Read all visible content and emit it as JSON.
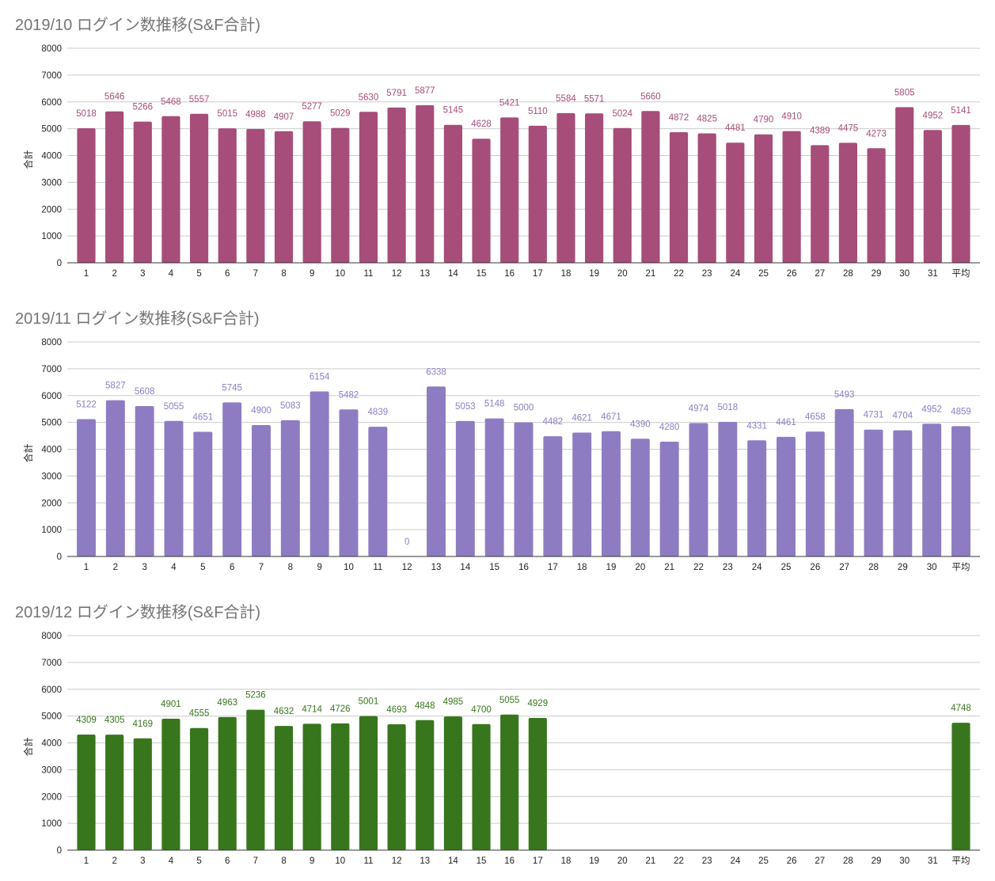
{
  "chart_data": [
    {
      "type": "bar",
      "title": "2019/10 ログイン数推移(S&F合計)",
      "ylabel": "合計",
      "xlabel": "",
      "ylim": [
        0,
        8000
      ],
      "yticks": [
        0,
        1000,
        2000,
        3000,
        4000,
        5000,
        6000,
        7000,
        8000
      ],
      "grid": true,
      "color": "#a64d79",
      "label_color": "#a64d79",
      "categories": [
        "1",
        "2",
        "3",
        "4",
        "5",
        "6",
        "7",
        "8",
        "9",
        "10",
        "11",
        "12",
        "13",
        "14",
        "15",
        "16",
        "17",
        "18",
        "19",
        "20",
        "21",
        "22",
        "23",
        "24",
        "25",
        "26",
        "27",
        "28",
        "29",
        "30",
        "31",
        "平均"
      ],
      "values": [
        5018,
        5646,
        5266,
        5468,
        5557,
        5015,
        4988,
        4907,
        5277,
        5029,
        5630,
        5791,
        5877,
        5145,
        4628,
        5421,
        5110,
        5584,
        5571,
        5024,
        5660,
        4872,
        4825,
        4481,
        4790,
        4910,
        4389,
        4475,
        4273,
        5805,
        4952,
        5141
      ]
    },
    {
      "type": "bar",
      "title": "2019/11 ログイン数推移(S&F合計)",
      "ylabel": "合計",
      "xlabel": "",
      "ylim": [
        0,
        8000
      ],
      "yticks": [
        0,
        1000,
        2000,
        3000,
        4000,
        5000,
        6000,
        7000,
        8000
      ],
      "grid": true,
      "color": "#8e7cc3",
      "label_color": "#8e7cc3",
      "categories": [
        "1",
        "2",
        "3",
        "4",
        "5",
        "6",
        "7",
        "8",
        "9",
        "10",
        "11",
        "12",
        "13",
        "14",
        "15",
        "16",
        "17",
        "18",
        "19",
        "20",
        "21",
        "22",
        "23",
        "24",
        "25",
        "26",
        "27",
        "28",
        "29",
        "30",
        "平均"
      ],
      "values": [
        5122,
        5827,
        5608,
        5055,
        4651,
        5745,
        4900,
        5083,
        6154,
        5482,
        4839,
        0,
        6338,
        5053,
        5148,
        5000,
        4482,
        4621,
        4671,
        4390,
        4280,
        4974,
        5018,
        4331,
        4461,
        4658,
        5493,
        4731,
        4704,
        4952,
        4859
      ]
    },
    {
      "type": "bar",
      "title": "2019/12 ログイン数推移(S&F合計)",
      "ylabel": "合計",
      "xlabel": "",
      "ylim": [
        0,
        8000
      ],
      "yticks": [
        0,
        1000,
        2000,
        3000,
        4000,
        5000,
        6000,
        7000,
        8000
      ],
      "grid": true,
      "color": "#38761d",
      "label_color": "#38761d",
      "categories": [
        "1",
        "2",
        "3",
        "4",
        "5",
        "6",
        "7",
        "8",
        "9",
        "10",
        "11",
        "12",
        "13",
        "14",
        "15",
        "16",
        "17",
        "18",
        "19",
        "20",
        "21",
        "22",
        "23",
        "24",
        "25",
        "26",
        "27",
        "28",
        "29",
        "30",
        "31",
        "平均"
      ],
      "values": [
        4309,
        4305,
        4169,
        4901,
        4555,
        4963,
        5236,
        4632,
        4714,
        4726,
        5001,
        4693,
        4848,
        4985,
        4700,
        5055,
        4929,
        null,
        null,
        null,
        null,
        null,
        null,
        null,
        null,
        null,
        null,
        null,
        null,
        null,
        null,
        4748
      ]
    }
  ]
}
